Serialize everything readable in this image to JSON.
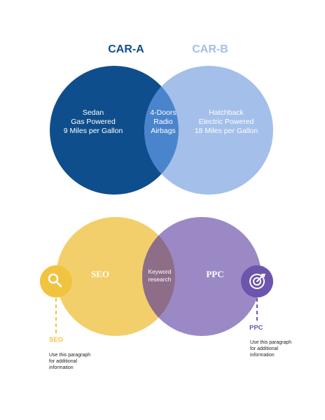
{
  "car_venn": {
    "set_a_title": "CAR-A",
    "set_b_title": "CAR-B",
    "set_a_only": [
      "Sedan",
      "Gas Powered",
      "9 Miles per Gallon"
    ],
    "overlap": [
      "4-Doors",
      "Radio",
      "Airbags"
    ],
    "set_b_only": [
      "Hatchback",
      "Electric Powered",
      "18 Miles per Gallon"
    ],
    "colors": {
      "set_a": "#0f4e8c",
      "set_b": "#a4bfe9",
      "overlap": "#4a84cc",
      "title_a": "#0f4e8c",
      "title_b": "#a4bfe9"
    }
  },
  "marketing_venn": {
    "left_label": "SEO",
    "right_label": "PPC",
    "overlap_lines": [
      "Keyword",
      "research"
    ],
    "left_callout": {
      "icon": "magnifier-icon",
      "title": "SEO",
      "paragraph": [
        "Use this paragraph",
        "for additional",
        "information"
      ]
    },
    "right_callout": {
      "icon": "target-icon",
      "title": "PPC",
      "paragraph": [
        "Use this paragraph",
        "for additional",
        "information"
      ]
    },
    "colors": {
      "left": "#f2cf6b",
      "right": "#9b89c6",
      "overlap": "#8e6d88",
      "left_accent": "#f2c341",
      "right_accent": "#6c55ad"
    }
  }
}
